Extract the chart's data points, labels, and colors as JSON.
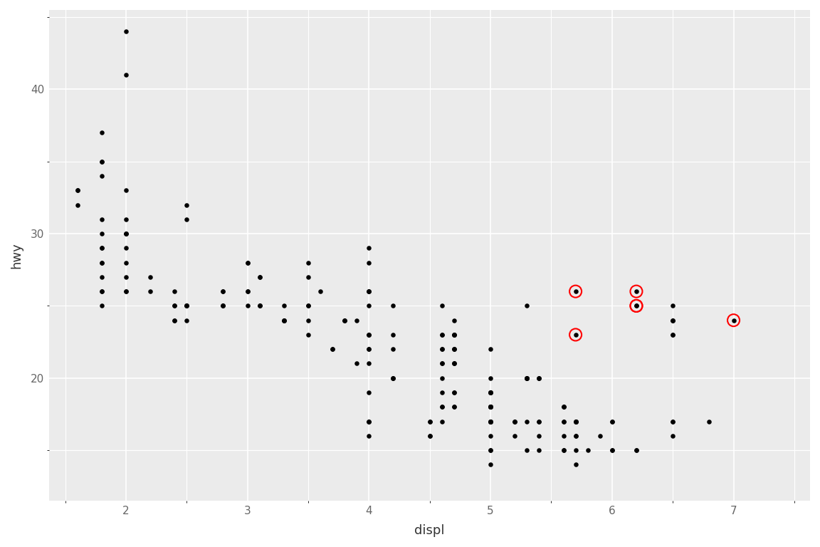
{
  "title": "",
  "xlabel": "displ",
  "ylabel": "hwy",
  "background_color": "#EBEBEB",
  "grid_color": "#FFFFFF",
  "point_color": "#000000",
  "highlight_color": "#FF0000",
  "xlim": [
    1.37,
    7.63
  ],
  "ylim": [
    11.5,
    45.5
  ],
  "xticks": [
    2,
    3,
    4,
    5,
    6,
    7
  ],
  "yticks": [
    20,
    30,
    40
  ],
  "black_points": [
    [
      1.8,
      29
    ],
    [
      1.8,
      29
    ],
    [
      2.0,
      31
    ],
    [
      2.0,
      30
    ],
    [
      2.8,
      26
    ],
    [
      2.8,
      26
    ],
    [
      3.1,
      27
    ],
    [
      1.8,
      26
    ],
    [
      1.8,
      25
    ],
    [
      2.0,
      28
    ],
    [
      2.0,
      27
    ],
    [
      2.8,
      25
    ],
    [
      2.8,
      25
    ],
    [
      3.1,
      25
    ],
    [
      3.1,
      25
    ],
    [
      2.8,
      25
    ],
    [
      3.1,
      25
    ],
    [
      4.2,
      23
    ],
    [
      5.3,
      20
    ],
    [
      5.3,
      15
    ],
    [
      5.3,
      20
    ],
    [
      5.7,
      17
    ],
    [
      6.0,
      17
    ],
    [
      5.7,
      17
    ],
    [
      5.7,
      16
    ],
    [
      6.2,
      15
    ],
    [
      6.2,
      15
    ],
    [
      5.3,
      20
    ],
    [
      5.3,
      17
    ],
    [
      5.7,
      17
    ],
    [
      6.5,
      17
    ],
    [
      2.4,
      25
    ],
    [
      2.4,
      24
    ],
    [
      3.1,
      27
    ],
    [
      3.5,
      25
    ],
    [
      3.6,
      26
    ],
    [
      2.4,
      24
    ],
    [
      3.0,
      25
    ],
    [
      3.3,
      25
    ],
    [
      3.3,
      24
    ],
    [
      3.3,
      24
    ],
    [
      3.3,
      24
    ],
    [
      3.3,
      24
    ],
    [
      3.8,
      24
    ],
    [
      3.8,
      24
    ],
    [
      3.8,
      24
    ],
    [
      4.0,
      23
    ],
    [
      3.7,
      22
    ],
    [
      3.7,
      22
    ],
    [
      3.9,
      24
    ],
    [
      3.9,
      21
    ],
    [
      4.7,
      19
    ],
    [
      4.7,
      18
    ],
    [
      4.7,
      18
    ],
    [
      5.2,
      17
    ],
    [
      5.2,
      16
    ],
    [
      4.7,
      23
    ],
    [
      4.7,
      23
    ],
    [
      4.7,
      22
    ],
    [
      4.7,
      22
    ],
    [
      4.7,
      21
    ],
    [
      4.7,
      21
    ],
    [
      4.7,
      21
    ],
    [
      5.2,
      17
    ],
    [
      5.2,
      17
    ],
    [
      5.7,
      17
    ],
    [
      5.9,
      16
    ],
    [
      4.6,
      22
    ],
    [
      5.4,
      17
    ],
    [
      5.4,
      17
    ],
    [
      4.0,
      26
    ],
    [
      4.0,
      25
    ],
    [
      4.0,
      28
    ],
    [
      4.0,
      19
    ],
    [
      4.6,
      22
    ],
    [
      5.0,
      19
    ],
    [
      4.2,
      20
    ],
    [
      4.2,
      25
    ],
    [
      4.6,
      20
    ],
    [
      4.6,
      19
    ],
    [
      6.8,
      17
    ],
    [
      5.7,
      17
    ],
    [
      5.7,
      16
    ],
    [
      6.0,
      17
    ],
    [
      6.0,
      15
    ],
    [
      6.0,
      15
    ],
    [
      4.6,
      23
    ],
    [
      5.4,
      20
    ],
    [
      5.4,
      20
    ],
    [
      5.4,
      16
    ],
    [
      4.0,
      23
    ],
    [
      4.0,
      23
    ],
    [
      4.0,
      22
    ],
    [
      4.6,
      23
    ],
    [
      4.6,
      21
    ],
    [
      4.6,
      21
    ],
    [
      4.6,
      18
    ],
    [
      4.6,
      18
    ],
    [
      4.0,
      17
    ],
    [
      4.0,
      17
    ],
    [
      4.0,
      17
    ],
    [
      4.0,
      16
    ],
    [
      4.0,
      21
    ],
    [
      4.0,
      22
    ],
    [
      4.5,
      16
    ],
    [
      4.5,
      16
    ],
    [
      4.5,
      17
    ],
    [
      4.5,
      17
    ],
    [
      5.0,
      22
    ],
    [
      5.0,
      20
    ],
    [
      5.0,
      19
    ],
    [
      5.0,
      19
    ],
    [
      5.0,
      15
    ],
    [
      5.0,
      15
    ],
    [
      5.0,
      14
    ],
    [
      5.0,
      17
    ],
    [
      5.0,
      17
    ],
    [
      5.0,
      19
    ],
    [
      5.0,
      19
    ],
    [
      5.0,
      18
    ],
    [
      5.0,
      18
    ],
    [
      5.0,
      18
    ],
    [
      5.0,
      18
    ],
    [
      5.0,
      18
    ],
    [
      5.0,
      18
    ],
    [
      5.0,
      17
    ],
    [
      5.0,
      17
    ],
    [
      5.0,
      16
    ],
    [
      5.0,
      17
    ],
    [
      5.0,
      18
    ],
    [
      5.0,
      17
    ],
    [
      5.6,
      18
    ],
    [
      5.6,
      17
    ],
    [
      5.6,
      18
    ],
    [
      5.6,
      18
    ],
    [
      5.6,
      17
    ],
    [
      5.6,
      16
    ],
    [
      5.6,
      15
    ],
    [
      5.6,
      15
    ],
    [
      5.7,
      15
    ],
    [
      5.7,
      14
    ],
    [
      5.8,
      15
    ],
    [
      6.5,
      17
    ],
    [
      6.5,
      16
    ],
    [
      5.3,
      25
    ],
    [
      5.3,
      20
    ],
    [
      6.5,
      25
    ],
    [
      6.5,
      24
    ],
    [
      6.5,
      24
    ],
    [
      6.5,
      24
    ],
    [
      6.5,
      23
    ],
    [
      6.5,
      23
    ],
    [
      1.6,
      33
    ],
    [
      1.6,
      32
    ],
    [
      1.6,
      33
    ],
    [
      1.8,
      37
    ],
    [
      1.8,
      35
    ],
    [
      1.8,
      35
    ],
    [
      1.8,
      34
    ],
    [
      2.0,
      44
    ],
    [
      2.0,
      41
    ],
    [
      1.8,
      31
    ],
    [
      1.8,
      30
    ],
    [
      1.8,
      28
    ],
    [
      1.8,
      27
    ],
    [
      1.8,
      26
    ],
    [
      2.0,
      30
    ],
    [
      2.0,
      29
    ],
    [
      2.5,
      32
    ],
    [
      2.5,
      31
    ],
    [
      2.0,
      30
    ],
    [
      2.2,
      27
    ],
    [
      2.2,
      26
    ],
    [
      2.4,
      26
    ],
    [
      2.4,
      25
    ],
    [
      2.5,
      25
    ],
    [
      2.5,
      25
    ],
    [
      2.5,
      25
    ],
    [
      2.5,
      25
    ],
    [
      2.5,
      24
    ],
    [
      5.3,
      20
    ],
    [
      4.6,
      17
    ],
    [
      5.4,
      15
    ],
    [
      5.4,
      20
    ],
    [
      4.0,
      29
    ],
    [
      4.0,
      26
    ],
    [
      4.0,
      26
    ],
    [
      4.7,
      24
    ],
    [
      4.7,
      23
    ],
    [
      4.7,
      23
    ],
    [
      4.7,
      22
    ],
    [
      4.7,
      19
    ],
    [
      3.5,
      28
    ],
    [
      3.5,
      27
    ],
    [
      3.5,
      25
    ],
    [
      3.5,
      24
    ],
    [
      3.5,
      23
    ],
    [
      4.2,
      22
    ],
    [
      4.2,
      20
    ],
    [
      4.2,
      20
    ],
    [
      3.0,
      28
    ],
    [
      3.0,
      28
    ],
    [
      3.0,
      26
    ],
    [
      3.0,
      26
    ],
    [
      2.0,
      33
    ],
    [
      2.0,
      26
    ],
    [
      2.0,
      26
    ],
    [
      1.8,
      28
    ],
    [
      4.6,
      25
    ]
  ],
  "red_points": [
    [
      5.7,
      26
    ],
    [
      5.7,
      23
    ],
    [
      6.2,
      26
    ],
    [
      6.2,
      25
    ],
    [
      6.2,
      25
    ],
    [
      7.0,
      24
    ]
  ]
}
